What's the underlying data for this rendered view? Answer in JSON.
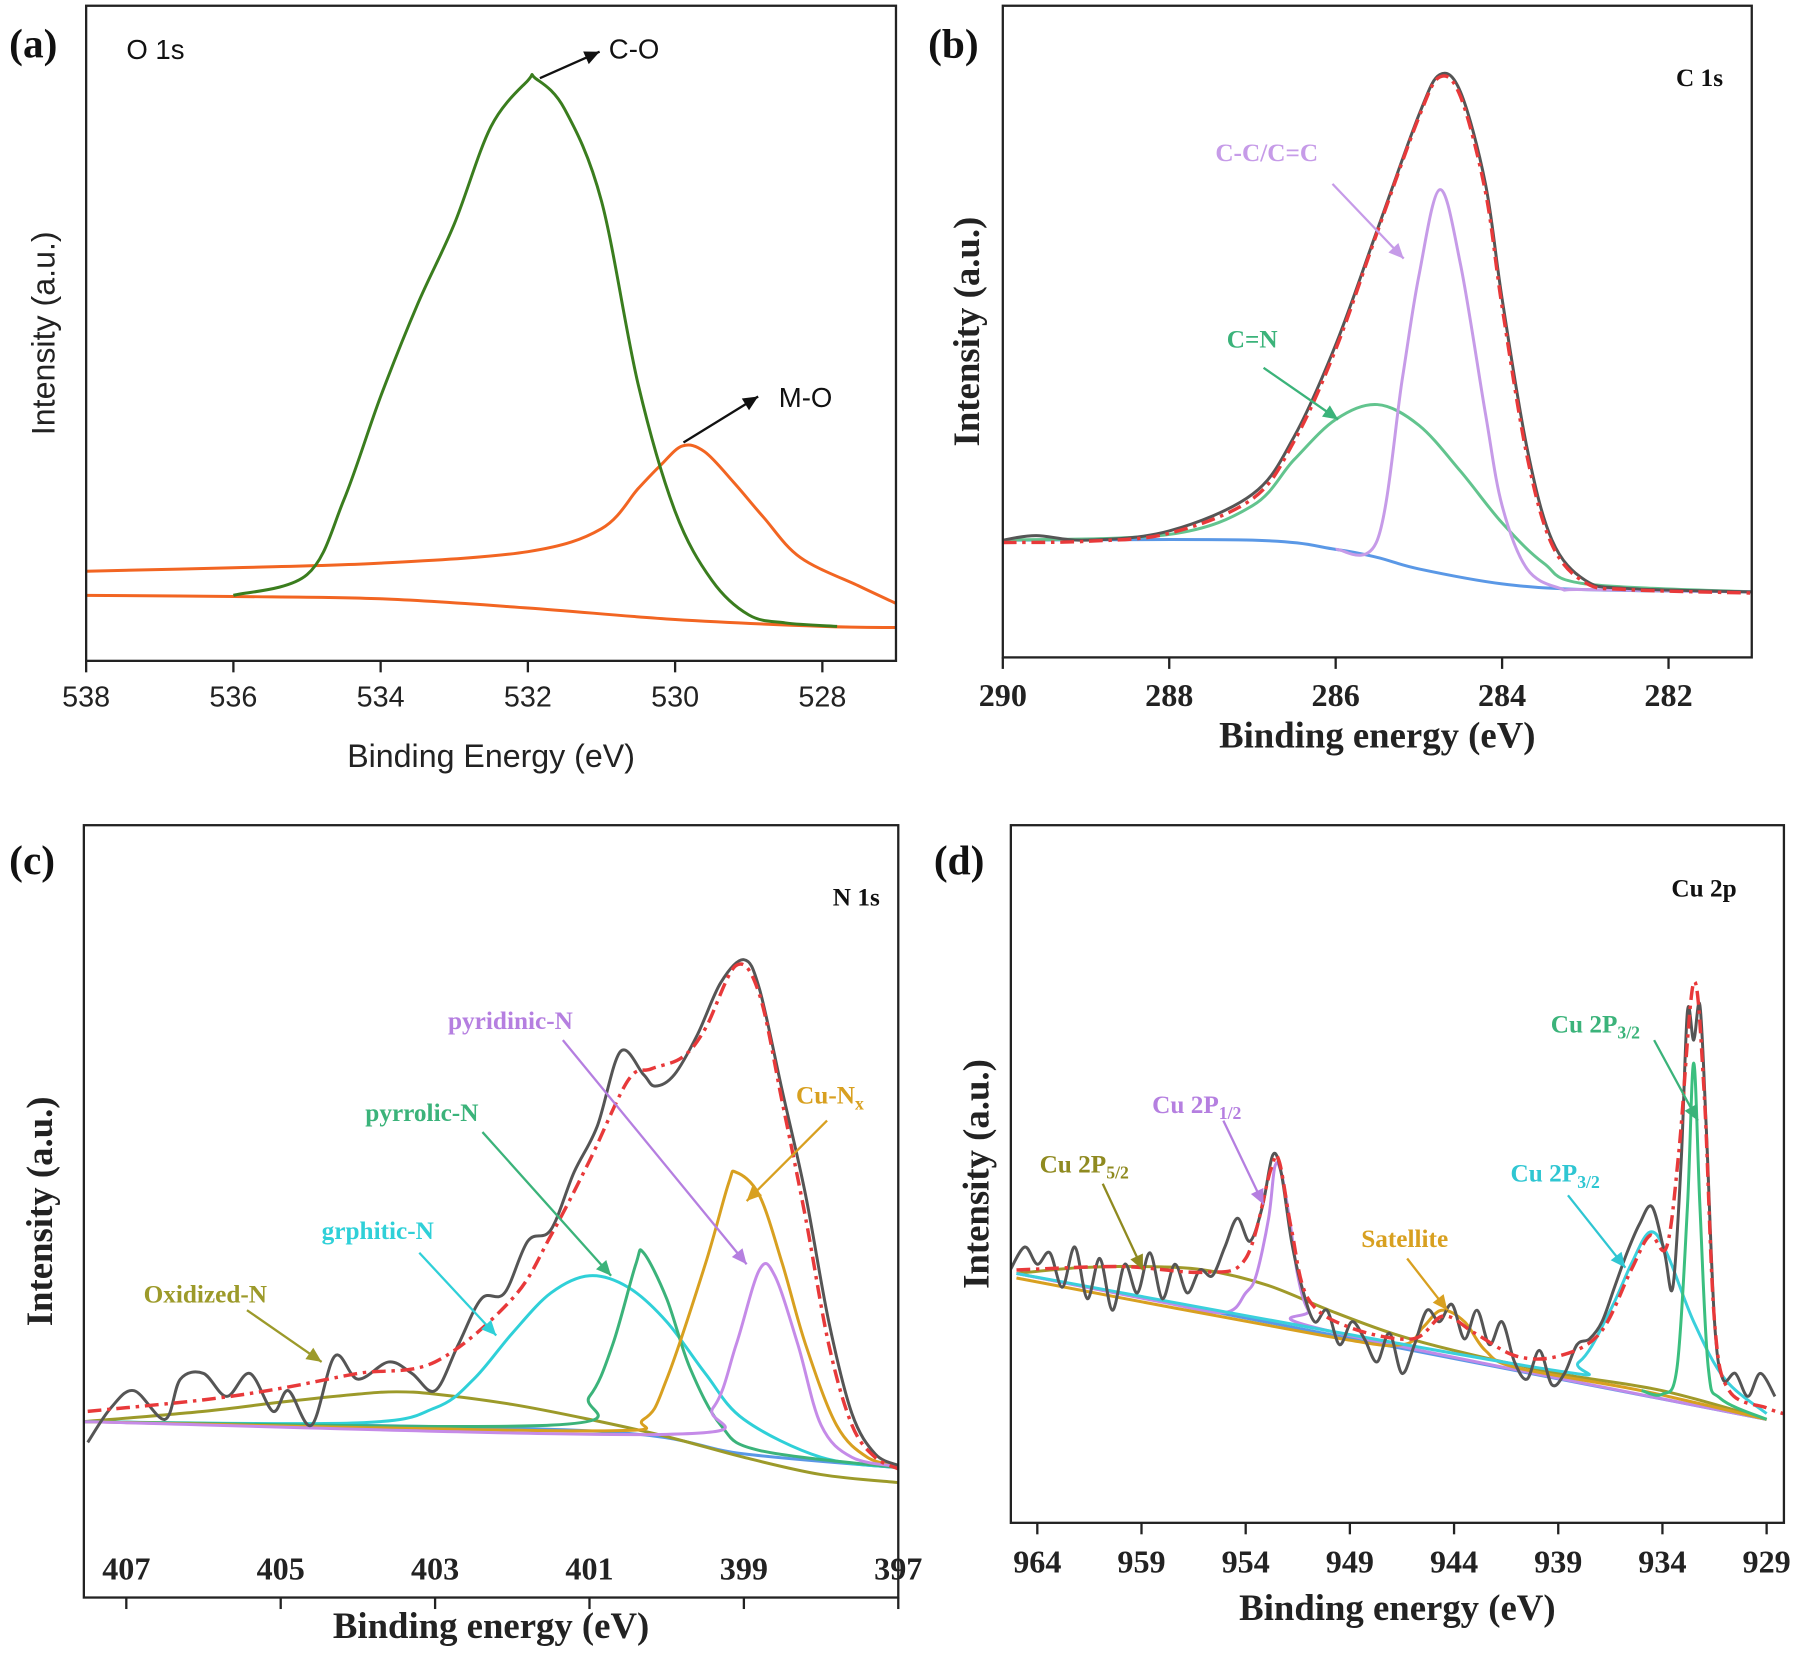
{
  "chart_data": [
    {
      "type": "line",
      "panel_label": "(a)",
      "spectrum_label": "O 1s",
      "xlabel": "Binding Energy (eV)",
      "ylabel": "Intensity (a.u.)",
      "xlim": [
        538,
        527
      ],
      "ylim": [
        0,
        570
      ],
      "xticks": [
        538,
        536,
        534,
        532,
        530,
        528
      ],
      "series": [
        {
          "color": "#f26522",
          "x": [
            538,
            536,
            534,
            532,
            530,
            528,
            527
          ],
          "values": [
            57,
            56,
            54,
            46,
            36,
            30,
            29
          ]
        },
        {
          "color": "#f26522",
          "x": [
            538,
            536,
            534,
            532,
            531,
            530.5,
            530.2,
            529.9,
            529.6,
            529.2,
            528.8,
            528.3,
            527.5,
            527
          ],
          "values": [
            78,
            81,
            85,
            95,
            115,
            150,
            170,
            187,
            182,
            155,
            125,
            90,
            65,
            50
          ]
        },
        {
          "color": "#3a7d1e",
          "x": [
            536,
            535,
            534.5,
            534,
            533.5,
            533,
            532.5,
            532,
            531.9,
            531.5,
            531,
            530.5,
            530,
            529.5,
            529,
            528.5,
            527.8
          ],
          "values": [
            57,
            75,
            140,
            230,
            310,
            380,
            465,
            505,
            507,
            480,
            400,
            240,
            130,
            70,
            40,
            33,
            30
          ]
        }
      ],
      "annotations": [
        {
          "text": "C-O",
          "color": "#111111"
        },
        {
          "text": "M-O",
          "color": "#111111"
        }
      ]
    },
    {
      "type": "line",
      "panel_label": "(b)",
      "spectrum_label": "C 1s",
      "xlabel": "Binding energy (eV)",
      "ylabel": "Intensity (a.u.)",
      "xlim": [
        290,
        281
      ],
      "ylim": [
        0,
        567
      ],
      "xticks": [
        290,
        288,
        286,
        284,
        282
      ],
      "series": [
        {
          "color": "#5a98e6",
          "x": [
            290,
            287,
            286,
            285.5,
            285,
            284,
            283,
            281
          ],
          "values": [
            102,
            102,
            94,
            87,
            77,
            64,
            59,
            57
          ]
        },
        {
          "color": "#62c48e",
          "x": [
            290,
            288,
            287,
            286.5,
            286,
            285.5,
            285,
            284.5,
            284,
            283.5,
            283,
            281
          ],
          "values": [
            102,
            107,
            132,
            172,
            207,
            220,
            202,
            162,
            117,
            82,
            64,
            57
          ]
        },
        {
          "color": "#c69be8",
          "x": [
            286,
            285.5,
            285.2,
            285,
            284.75,
            284.5,
            284.2,
            284,
            283.7,
            283.3,
            283,
            281
          ],
          "values": [
            94,
            102,
            242,
            332,
            407,
            342,
            212,
            132,
            77,
            60,
            59,
            57
          ]
        },
        {
          "color": "#555555",
          "x": [
            290,
            289.6,
            289,
            288,
            287,
            286.5,
            286,
            285.5,
            285,
            284.75,
            284.5,
            284.2,
            284,
            283.7,
            283.4,
            283,
            282.5,
            281
          ],
          "values": [
            102,
            106,
            102,
            110,
            142,
            192,
            272,
            372,
            472,
            507,
            492,
            412,
            312,
            182,
            102,
            67,
            60,
            57
          ]
        },
        {
          "color": "#e8393a",
          "dash": true,
          "x": [
            290,
            289,
            288,
            287,
            286.5,
            286,
            285.5,
            285,
            284.75,
            284.5,
            284.2,
            284,
            283.7,
            283.4,
            283,
            282.5,
            281
          ],
          "values": [
            100,
            101,
            108,
            138,
            188,
            268,
            370,
            470,
            505,
            488,
            405,
            305,
            175,
            98,
            65,
            59,
            56
          ]
        }
      ],
      "annotations": [
        {
          "text": "C-C/C=C",
          "color": "#c69be8"
        },
        {
          "text": "C=N",
          "color": "#3bb37a"
        }
      ]
    },
    {
      "type": "line",
      "panel_label": "(c)",
      "spectrum_label": "N 1s",
      "xlabel": "Binding energy (eV)",
      "ylabel": "Intensity (a.u.)",
      "xlim": [
        407.55,
        397
      ],
      "ylim": [
        0,
        672
      ],
      "xticks": [
        407,
        405,
        403,
        401,
        399,
        397
      ],
      "series": [
        {
          "color": "#5a98e6",
          "x": [
            407.55,
            401,
            399,
            397
          ],
          "values": [
            153,
            145,
            125,
            113
          ]
        },
        {
          "color": "#9c9a2a",
          "x": [
            407.55,
            406,
            405,
            404,
            403.5,
            403,
            402,
            401,
            400,
            399,
            398,
            397
          ],
          "values": [
            153,
            162,
            170,
            177,
            179,
            177,
            168,
            155,
            140,
            122,
            107,
            100
          ]
        },
        {
          "color": "#2fd0d8",
          "x": [
            407.55,
            404,
            403,
            402.5,
            402,
            401.5,
            401,
            400.5,
            400,
            399.5,
            399,
            398,
            397
          ],
          "values": [
            153,
            152,
            165,
            190,
            230,
            265,
            280,
            270,
            240,
            195,
            155,
            122,
            113
          ]
        },
        {
          "color": "#3bb37a",
          "x": [
            407.55,
            401.5,
            401,
            400.7,
            400.4,
            400.3,
            400,
            399.7,
            399.3,
            398.8,
            397
          ],
          "values": [
            153,
            150,
            175,
            220,
            290,
            300,
            260,
            200,
            150,
            128,
            113
          ]
        },
        {
          "color": "#d8a020",
          "x": [
            407.55,
            401,
            400.3,
            400,
            399.5,
            399.2,
            399.1,
            398.8,
            398.5,
            398.2,
            397.8,
            397.4,
            397
          ],
          "values": [
            153,
            145,
            155,
            190,
            290,
            360,
            370,
            350,
            290,
            220,
            150,
            122,
            115
          ]
        },
        {
          "color": "#c58be8",
          "x": [
            407.55,
            400,
            399.4,
            399.1,
            398.8,
            398.6,
            398.3,
            398,
            397.6,
            397
          ],
          "values": [
            153,
            142,
            165,
            220,
            285,
            280,
            220,
            150,
            122,
            114
          ]
        },
        {
          "color": "#555555",
          "x": [
            407.5,
            407.2,
            406.9,
            406.5,
            406.3,
            406,
            405.7,
            405.4,
            405.1,
            404.9,
            404.6,
            404.3,
            404,
            403.6,
            403.3,
            403,
            402.7,
            402.4,
            402.1,
            401.8,
            401.5,
            401.2,
            400.9,
            400.6,
            400.3,
            400.15,
            399.9,
            399.6,
            399.3,
            399,
            398.8,
            398.5,
            398.2,
            397.9,
            397.6,
            397.3,
            397
          ],
          "values": [
            135,
            165,
            180,
            155,
            190,
            195,
            175,
            195,
            162,
            180,
            150,
            210,
            190,
            205,
            195,
            180,
            220,
            260,
            265,
            310,
            320,
            370,
            410,
            475,
            455,
            445,
            455,
            490,
            535,
            555,
            530,
            440,
            350,
            240,
            160,
            125,
            115
          ]
        },
        {
          "color": "#e8393a",
          "dash": true,
          "x": [
            407.5,
            406,
            405,
            404,
            403,
            402,
            401.5,
            401,
            400.5,
            400.2,
            399.8,
            399.5,
            399.1,
            398.8,
            398.5,
            398.2,
            397.9,
            397.6,
            397.3,
            397
          ],
          "values": [
            162,
            172,
            182,
            195,
            205,
            260,
            315,
            380,
            450,
            460,
            470,
            495,
            550,
            525,
            430,
            330,
            220,
            150,
            122,
            112
          ]
        }
      ],
      "annotations": [
        {
          "text": "pyridinic-N",
          "color": "#b57fe0"
        },
        {
          "text": "Cu-N",
          "sub": "x",
          "color": "#d8a020"
        },
        {
          "text": "pyrrolic-N",
          "color": "#3bb37a"
        },
        {
          "text": "grphitic-N",
          "color": "#2fd0d8"
        },
        {
          "text": "Oxidized-N",
          "color": "#9c9a2a"
        }
      ]
    },
    {
      "type": "line",
      "panel_label": "(d)",
      "spectrum_label": "Cu 2p",
      "xlabel": "Binding energy (eV)",
      "ylabel": "Intensity (a.u.)",
      "xlim": [
        965.27,
        928.17
      ],
      "ylim": [
        0,
        607
      ],
      "xticks": [
        964,
        959,
        954,
        949,
        944,
        939,
        934,
        929
      ],
      "series": [
        {
          "color": "#5a98e6",
          "x": [
            965,
            929
          ],
          "values": [
            217,
            90
          ]
        },
        {
          "color": "#a09a2a",
          "x": [
            965,
            962,
            959,
            956,
            953,
            950,
            947,
            944,
            939,
            934,
            929
          ],
          "values": [
            217,
            222,
            223,
            220,
            207,
            185,
            165,
            150,
            130,
            115,
            90
          ]
        },
        {
          "color": "#c08ae8",
          "x": [
            965,
            958,
            955,
            954,
            953.5,
            952.9,
            952.6,
            952.3,
            951.9,
            951.5,
            951,
            950,
            929
          ],
          "values": [
            217,
            192,
            183,
            200,
            215,
            265,
            310,
            305,
            265,
            215,
            185,
            167,
            90
          ]
        },
        {
          "color": "#d8a020",
          "x": [
            965,
            950,
            946.5,
            945.5,
            944.6,
            943.5,
            942.5,
            941,
            935,
            929
          ],
          "values": [
            213,
            162,
            155,
            170,
            185,
            175,
            150,
            135,
            115,
            90
          ]
        },
        {
          "color": "#3ad0dc",
          "x": [
            965,
            940,
            938,
            936.5,
            935.5,
            934.6,
            933.8,
            932.5,
            931,
            929
          ],
          "values": [
            217,
            135,
            140,
            185,
            225,
            253,
            235,
            175,
            125,
            95
          ]
        },
        {
          "color": "#3bbf7f",
          "x": [
            935,
            934,
            933.3,
            932.8,
            932.5,
            932.2,
            931.8,
            931.2,
            929
          ],
          "values": [
            115,
            112,
            135,
            275,
            400,
            275,
            135,
            108,
            90
          ]
        },
        {
          "color": "#555555",
          "x": [
            965.3,
            964.6,
            964,
            963.4,
            962.8,
            962.2,
            961.6,
            961,
            960.4,
            959.8,
            959.2,
            958.6,
            958,
            957.4,
            956.8,
            956.2,
            955.6,
            955,
            954.4,
            953.8,
            953.2,
            952.7,
            952.3,
            951.8,
            951.3,
            950.7,
            950.1,
            949.5,
            948.9,
            948.3,
            947.7,
            947.1,
            946.5,
            945.9,
            945.3,
            944.7,
            944.1,
            943.5,
            942.9,
            942.3,
            941.7,
            941.1,
            940.5,
            939.9,
            939.3,
            938.7,
            938.1,
            937.5,
            936.9,
            936.3,
            935.7,
            935.1,
            934.5,
            933.9,
            933.5,
            933.1,
            932.8,
            932.5,
            932.2,
            931.9,
            931.5,
            931.1,
            930.5,
            929.9,
            929.3,
            928.6
          ],
          "values": [
            220,
            240,
            225,
            235,
            205,
            240,
            195,
            230,
            185,
            225,
            200,
            235,
            195,
            225,
            200,
            220,
            215,
            240,
            265,
            245,
            275,
            320,
            305,
            245,
            205,
            175,
            185,
            155,
            175,
            160,
            140,
            165,
            130,
            155,
            185,
            175,
            190,
            160,
            185,
            155,
            175,
            140,
            125,
            150,
            120,
            130,
            155,
            160,
            175,
            205,
            235,
            260,
            275,
            235,
            205,
            315,
            445,
            420,
            450,
            345,
            175,
            125,
            130,
            110,
            130,
            110
          ]
        },
        {
          "color": "#e8393a",
          "dash": true,
          "x": [
            965,
            960,
            956,
            954,
            952.8,
            952.4,
            951.8,
            951,
            949,
            946,
            944.5,
            943,
            941,
            939,
            937,
            935.5,
            934.6,
            933.8,
            933.2,
            932.5,
            932,
            931.5,
            930.8,
            929,
            928.2
          ],
          "values": [
            220,
            223,
            218,
            230,
            307,
            315,
            255,
            195,
            170,
            160,
            180,
            165,
            145,
            145,
            165,
            220,
            250,
            240,
            325,
            470,
            375,
            175,
            115,
            100,
            95
          ]
        }
      ],
      "annotations": [
        {
          "text": "Cu 2P",
          "sub": "3/2",
          "color": "#3bb37a"
        },
        {
          "text": "Cu 2P",
          "sub": "1/2",
          "color": "#b57fe0"
        },
        {
          "text": "Cu 2P",
          "sub": "5/2",
          "color": "#8f8a20"
        },
        {
          "text": "Cu 2P",
          "sub": "3/2",
          "color": "#2fc6d2"
        },
        {
          "text": "Satellite",
          "color": "#d8a020"
        }
      ]
    }
  ]
}
